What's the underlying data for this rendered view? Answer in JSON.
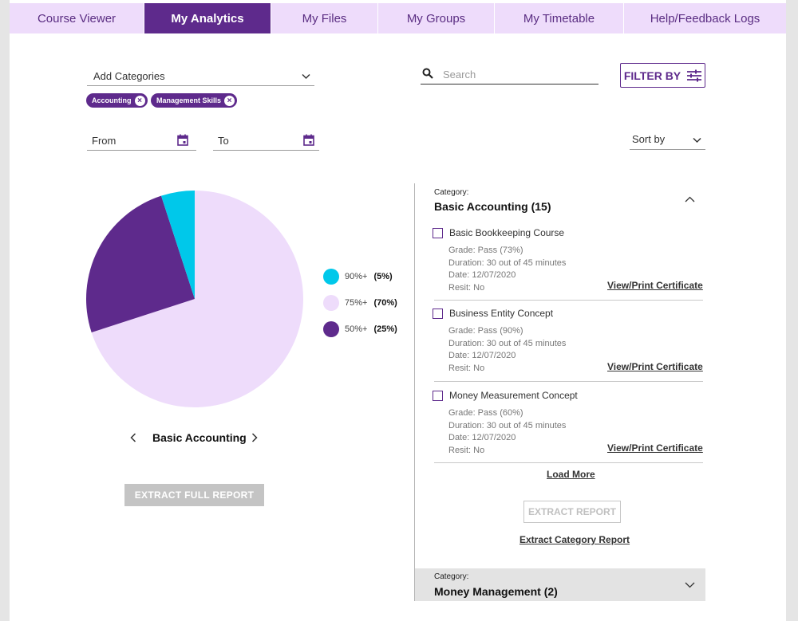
{
  "nav": {
    "tabs": [
      {
        "label": "Course Viewer"
      },
      {
        "label": "My Analytics"
      },
      {
        "label": "My Files"
      },
      {
        "label": "My Groups"
      },
      {
        "label": "My Timetable"
      },
      {
        "label": "Help/Feedback Logs"
      }
    ],
    "active_index": 1
  },
  "filters": {
    "categories_label": "Add Categories",
    "chips": [
      "Accounting",
      "Management Skills"
    ],
    "search_placeholder": "Search",
    "filter_button": "FILTER BY",
    "from_label": "From",
    "to_label": "To",
    "sort_label": "Sort by"
  },
  "colors": {
    "purple": "#5e2a8c",
    "lavender": "#eedcfb",
    "cyan": "#00c8ea"
  },
  "chart_data": {
    "type": "pie",
    "title": "Basic Accounting",
    "slices": [
      {
        "label": "90%+",
        "value": 5,
        "display": "(5%)",
        "color": "#00c8ea"
      },
      {
        "label": "75%+",
        "value": 70,
        "display": "(70%)",
        "color": "#eedcfb"
      },
      {
        "label": "50%+",
        "value": 25,
        "display": "(25%)",
        "color": "#5e2a8c"
      }
    ]
  },
  "left_panel": {
    "chart_title": "Basic Accounting",
    "prev_icon": "chevron-left-icon",
    "next_icon": "chevron-right-icon",
    "extract_full_report": "EXTRACT FULL REPORT"
  },
  "category1": {
    "label": "Category:",
    "title": "Basic Accounting (15)",
    "courses": [
      {
        "title": "Basic Bookkeeping Course",
        "grade": "Grade: Pass (73%)",
        "duration": "Duration: 30 out of 45 minutes",
        "date": "Date: 12/07/2020",
        "resit": "Resit: No",
        "link": "View/Print Certificate"
      },
      {
        "title": "Business Entity Concept",
        "grade": "Grade: Pass (90%)",
        "duration": "Duration: 30 out of 45 minutes",
        "date": "Date: 12/07/2020",
        "resit": "Resit: No",
        "link": "View/Print Certificate"
      },
      {
        "title": "Money Measurement Concept",
        "grade": "Grade: Pass (60%)",
        "duration": "Duration: 30 out of 45 minutes",
        "date": "Date: 12/07/2020",
        "resit": "Resit: No",
        "link": "View/Print Certificate"
      }
    ],
    "load_more": "Load More",
    "extract_report": "EXTRACT REPORT",
    "extract_category_report": "Extract Category Report"
  },
  "category2": {
    "label": "Category:",
    "title": "Money Management (2)"
  }
}
